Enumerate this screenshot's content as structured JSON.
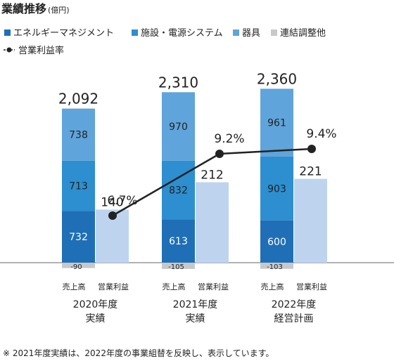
{
  "title": "業績推移",
  "unit": "(億円)",
  "footnote": "※ 2021年度実績は、2022年度の事業組替を反映し、表示しています。",
  "colors": {
    "energy": "#1f6fb6",
    "facility": "#2d8ed0",
    "equipment": "#5fa4da",
    "adjust": "#c8c8c8",
    "operating": "#bed4ee",
    "line": "#222222"
  },
  "chart_data": {
    "type": "bar",
    "categories": [
      {
        "year": "2020年度",
        "label": "実績"
      },
      {
        "year": "2021年度",
        "label": "実績"
      },
      {
        "year": "2022年度",
        "label": "経営計画"
      }
    ],
    "bar_sublabels": [
      "売上高",
      "営業利益"
    ],
    "series": [
      {
        "name": "エネルギーマネジメント",
        "key": "energy",
        "values": [
          732,
          613,
          600
        ]
      },
      {
        "name": "施設・電源システム",
        "key": "facility",
        "values": [
          713,
          832,
          903
        ]
      },
      {
        "name": "器具",
        "key": "equipment",
        "values": [
          738,
          970,
          961
        ]
      },
      {
        "name": "連結調整他",
        "key": "adjust",
        "values": [
          -90,
          -105,
          -103
        ]
      }
    ],
    "sales_totals": [
      "2,092",
      "2,310",
      "2,360"
    ],
    "operating_profit": {
      "values": [
        140,
        212,
        221
      ]
    },
    "operating_margin": {
      "name": "営業利益率",
      "values": [
        6.7,
        9.2,
        9.4
      ],
      "labels": [
        "6.7%",
        "9.2%",
        "9.4%"
      ]
    }
  }
}
